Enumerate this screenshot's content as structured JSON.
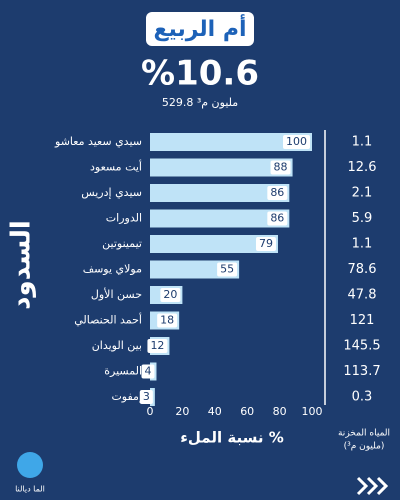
{
  "chart_data": {
    "type": "bar",
    "title": "أم الربيع",
    "headline": "%10.6",
    "subtitle": "529.8 مليون م³",
    "y_label": "السدود",
    "x_label": "نسبة الملء %",
    "categories": [
      "سيدي سعيد معاشو",
      "أيت مسعود",
      "سيدي إدريس",
      "الدورات",
      "تيمينوتين",
      "مولاي يوسف",
      "حسن الأول",
      "أحمد الحنصالي",
      "بين الويدان",
      "المسيرة",
      "إمفوت"
    ],
    "values": [
      100,
      88,
      86,
      86,
      79,
      55,
      20,
      18,
      12,
      4,
      3
    ],
    "color": "#bfe3f7",
    "xlim": [
      0,
      100
    ],
    "xticks": [
      0,
      20,
      40,
      60,
      80,
      100
    ],
    "stored_water": {
      "label": "المياه المخزنة",
      "unit": "(مليون م³)",
      "values": [
        1.1,
        12.6,
        2.1,
        5.9,
        1.1,
        78.6,
        47.8,
        121,
        145.5,
        113.7,
        0.3
      ]
    },
    "logo": "الما ديالنا"
  }
}
